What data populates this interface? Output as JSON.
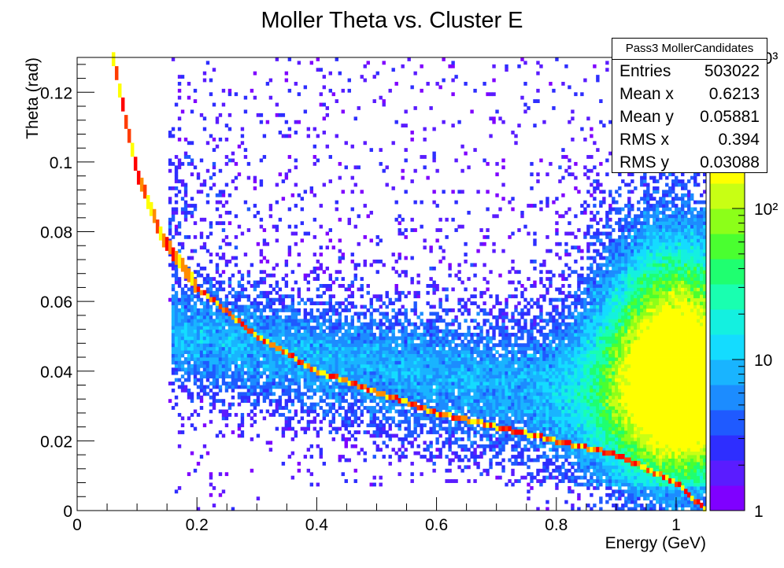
{
  "chart_data": {
    "type": "heatmap",
    "title": "Moller Theta vs. Cluster E",
    "xlabel": "Energy (GeV)",
    "ylabel": "Theta (rad)",
    "xlim": [
      0,
      1.05
    ],
    "ylim": [
      0,
      0.13
    ],
    "x_ticks": [
      0,
      0.2,
      0.4,
      0.6,
      0.8,
      1
    ],
    "x_tick_labels": [
      "0",
      "0.2",
      "0.4",
      "0.6",
      "0.8",
      "1"
    ],
    "y_ticks": [
      0,
      0.02,
      0.04,
      0.06,
      0.08,
      0.1,
      0.12
    ],
    "y_tick_labels": [
      "0",
      "0.02",
      "0.04",
      "0.06",
      "0.08",
      "0.1",
      "0.12"
    ],
    "z_scale": "log",
    "z_range": [
      1,
      1000
    ],
    "z_tick_labels": [
      "1",
      "10",
      "10²",
      "10³"
    ],
    "palette": [
      "#7f00ff",
      "#5a1cff",
      "#2e2eff",
      "#1f5aff",
      "#1c8cff",
      "#19b4ff",
      "#14dcff",
      "#14f0e0",
      "#19ffb0",
      "#1fff70",
      "#4aff30",
      "#8cff19",
      "#c8ff14",
      "#ffff00",
      "#ffc800",
      "#ff8c00",
      "#ff3c00",
      "#ff0000"
    ],
    "features": {
      "moller_curve": {
        "description_points_E": [
          0.06,
          0.08,
          0.1,
          0.14,
          0.2,
          0.3,
          0.4,
          0.5,
          0.6,
          0.7,
          0.8,
          0.9,
          1.0,
          1.05
        ],
        "description_points_theta": [
          0.13,
          0.113,
          0.097,
          0.079,
          0.064,
          0.05,
          0.04,
          0.034,
          0.028,
          0.024,
          0.02,
          0.016,
          0.008,
          0.0
        ]
      }
    }
  },
  "stats_box": {
    "name": "Pass3 MollerCandidates",
    "rows": [
      {
        "label": "Entries",
        "value": "503022"
      },
      {
        "label": "Mean x",
        "value": "0.6213"
      },
      {
        "label": "Mean y",
        "value": "0.05881"
      },
      {
        "label": "RMS x",
        "value": "0.394"
      },
      {
        "label": "RMS y",
        "value": "0.03088"
      }
    ]
  }
}
